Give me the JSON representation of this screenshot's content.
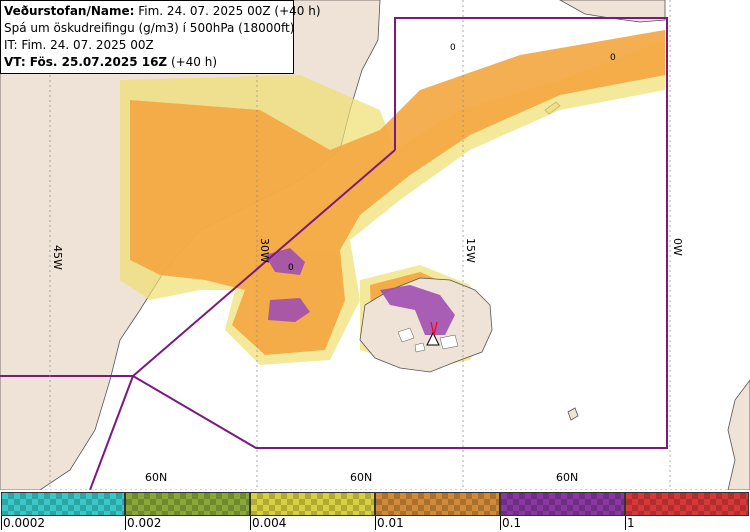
{
  "header": {
    "line1_bold": "Veðurstofan/Name:",
    "line1_rest": " Fim. 24. 07. 2025 00Z (+40 h)",
    "line2": "Spá um öskudreifingu (g/m3) í 500hPa (18000ft)",
    "line3": "IT: Fim. 24. 07. 2025 00Z",
    "line4_bold": "VT: Fös. 25.07.2025 16Z",
    "line4_rest": " (+40 h)"
  },
  "map": {
    "longitude_labels": [
      "45W",
      "30W",
      "15W",
      "0W"
    ],
    "latitude_labels": [
      "60N",
      "60N",
      "60N"
    ],
    "contour_labels": [
      "0",
      "0",
      "0"
    ],
    "colors": {
      "land": "#efe2d6",
      "ocean": "#ffffff",
      "ash_low": "#f4a640",
      "ash_high": "#a050b0",
      "ash_fringe": "#f0e070",
      "region_border": "#7a1a80",
      "volcano": "#ff0000"
    },
    "volcano_marker_icon": "warning-triangle-icon"
  },
  "legend": {
    "tick_labels": [
      "0.0002",
      "0.002",
      "0.004",
      "0.01",
      "0.1",
      "1"
    ],
    "segment_colors": [
      "#38c8c8",
      "#88a838",
      "#d8d040",
      "#d08a38",
      "#8838a0",
      "#d83838"
    ]
  }
}
